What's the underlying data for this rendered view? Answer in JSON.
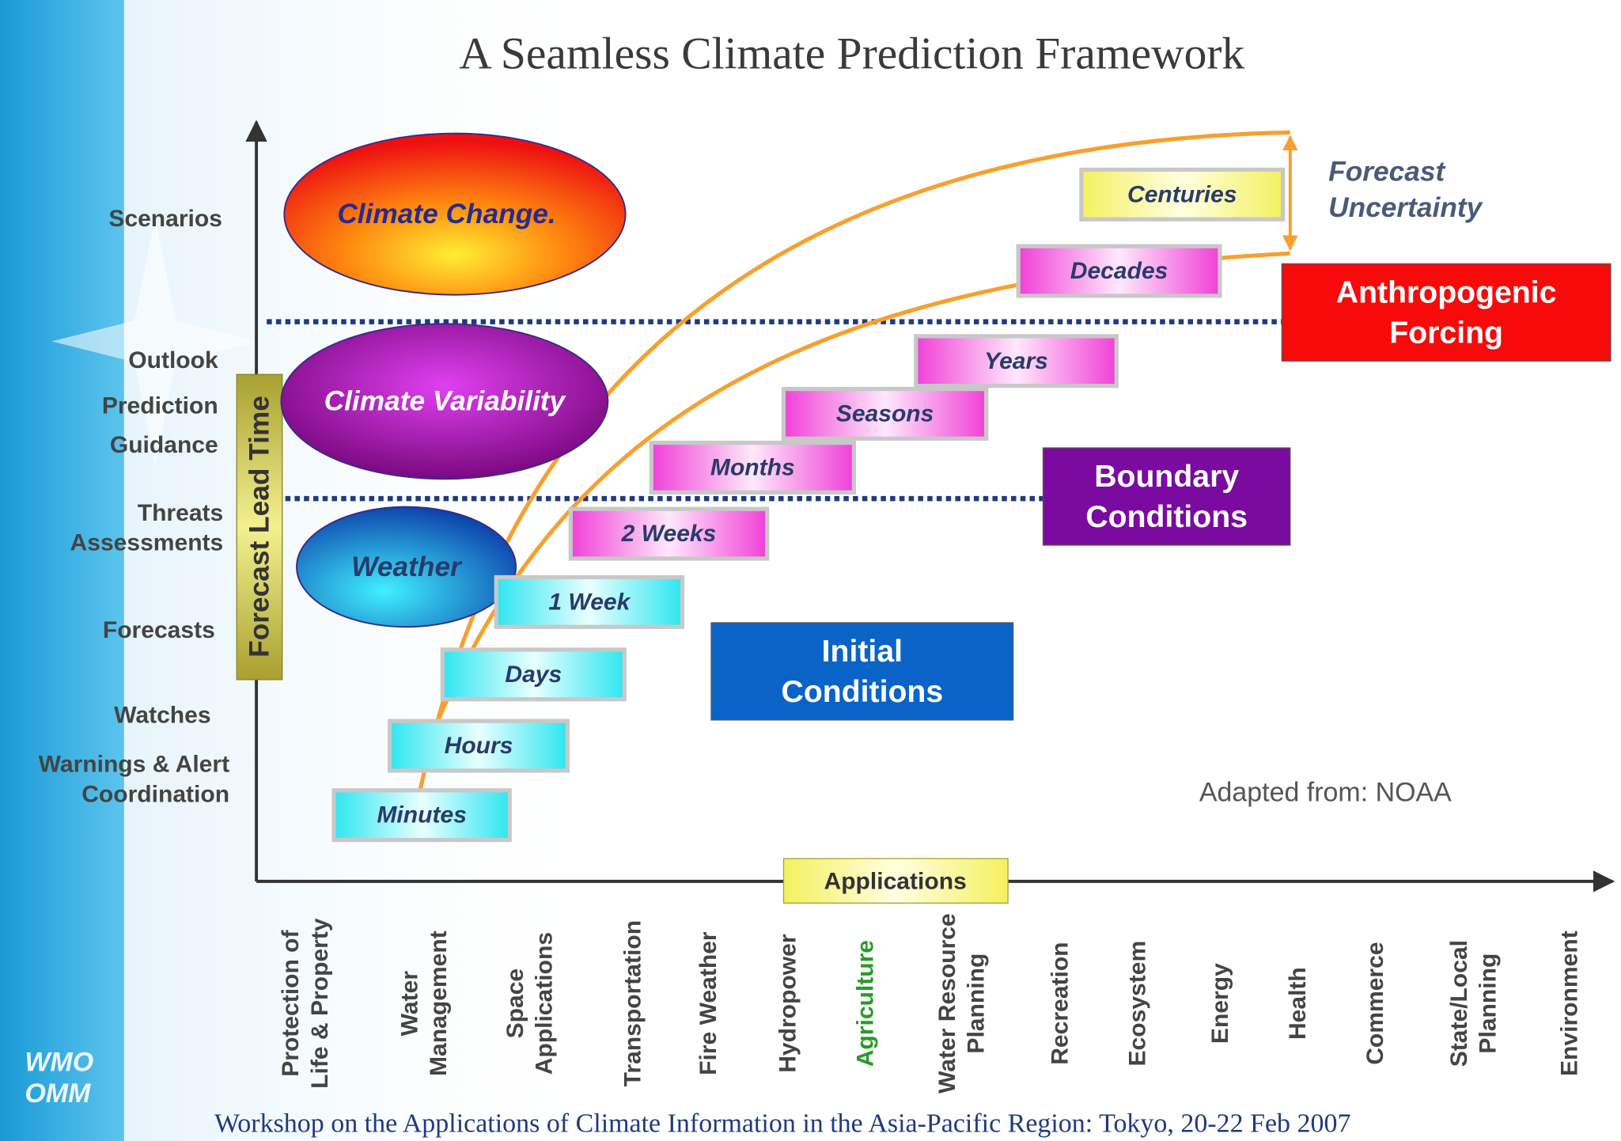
{
  "title": "A Seamless Climate Prediction Framework",
  "y_axis": {
    "label": "Forecast Lead Time",
    "levels": [
      {
        "lines": [
          "Scenarios"
        ]
      },
      {
        "lines": [
          "Outlook"
        ]
      },
      {
        "lines": [
          "Prediction"
        ]
      },
      {
        "lines": [
          "Guidance"
        ]
      },
      {
        "lines": [
          "Threats",
          "Assessments"
        ]
      },
      {
        "lines": [
          "Forecasts"
        ]
      },
      {
        "lines": [
          "Watches"
        ]
      },
      {
        "lines": [
          "Warnings & Alert",
          "Coordination"
        ]
      }
    ]
  },
  "x_axis": {
    "label": "Applications",
    "items": [
      {
        "lines": [
          "Protection of",
          "Life & Property"
        ]
      },
      {
        "lines": [
          "Water",
          "Management"
        ]
      },
      {
        "lines": [
          "Space",
          "Applications"
        ]
      },
      {
        "lines": [
          "Transportation"
        ]
      },
      {
        "lines": [
          "Fire Weather"
        ]
      },
      {
        "lines": [
          "Hydropower"
        ]
      },
      {
        "lines": [
          "Agriculture"
        ]
      },
      {
        "lines": [
          "Water Resource",
          "Planning"
        ]
      },
      {
        "lines": [
          "Recreation"
        ]
      },
      {
        "lines": [
          "Ecosystem"
        ]
      },
      {
        "lines": [
          "Energy"
        ]
      },
      {
        "lines": [
          "Health"
        ]
      },
      {
        "lines": [
          "Commerce"
        ]
      },
      {
        "lines": [
          "State/Local",
          "Planning"
        ]
      },
      {
        "lines": [
          "Environment"
        ]
      }
    ]
  },
  "regimes": [
    "Climate Change.",
    "Climate Variability",
    "Weather"
  ],
  "time_scales": [
    "Minutes",
    "Hours",
    "Days",
    "1 Week",
    "2 Weeks",
    "Months",
    "Seasons",
    "Years",
    "Decades",
    "Centuries"
  ],
  "sources": [
    {
      "lines": [
        "Initial",
        "Conditions"
      ]
    },
    {
      "lines": [
        "Boundary",
        "Conditions"
      ]
    },
    {
      "lines": [
        "Anthropogenic",
        "Forcing"
      ]
    }
  ],
  "uncertainty": {
    "lines": [
      "Forecast",
      "Uncertainty"
    ]
  },
  "credit": "Adapted from: NOAA",
  "footer": "Workshop on the Applications of Climate Information in the Asia-Pacific Region: Tokyo, 20-22 Feb 2007",
  "logo": {
    "lines": [
      "WMO",
      "OMM"
    ]
  }
}
